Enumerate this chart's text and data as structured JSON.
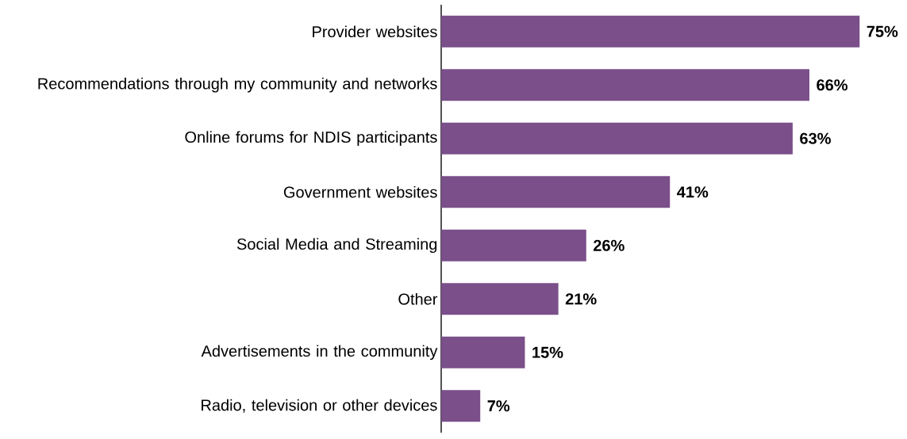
{
  "chart_data": {
    "type": "bar",
    "orientation": "horizontal",
    "categories": [
      "Provider websites",
      "Recommendations through my community and networks",
      "Online forums for NDIS participants",
      "Government websites",
      "Social Media and Streaming",
      "Other",
      "Advertisements in the community",
      "Radio, television or other devices"
    ],
    "values": [
      75,
      66,
      63,
      41,
      26,
      21,
      15,
      7
    ],
    "value_labels": [
      "75%",
      "66%",
      "63%",
      "41%",
      "26%",
      "21%",
      "15%",
      "7%"
    ],
    "color": "#7a4f8a"
  }
}
